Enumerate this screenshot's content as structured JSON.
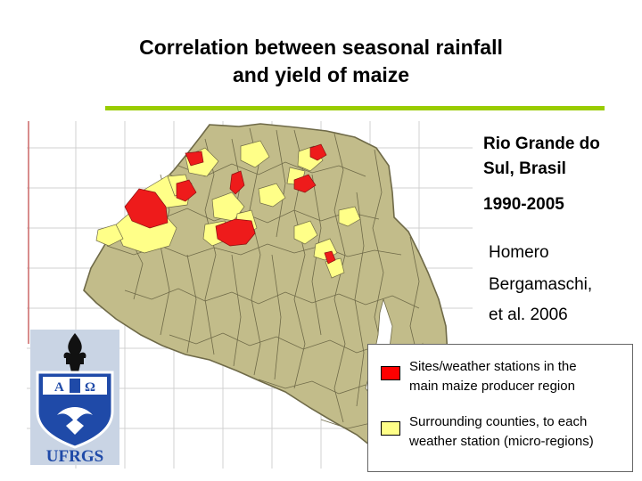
{
  "title": {
    "line1": "Correlation between seasonal rainfall",
    "line2": "and yield of maize"
  },
  "map": {
    "region": "Rio Grande do Sul, Brasil",
    "colors": {
      "base": "#c2bc8a",
      "producer": "#ee1b1b",
      "surrounding": "#ffff88",
      "border": "#6f6a48",
      "grid": "#d0d0d0"
    }
  },
  "side_text": {
    "region_line1": "Rio Grande do",
    "region_line2": "Sul, Brasil",
    "period": "1990-2005",
    "author_line1": "Homero",
    "author_line2": "Bergamaschi,",
    "author_line3": "et al. 2006"
  },
  "legend": {
    "items": [
      {
        "line1": "Sites/weather stations in the",
        "line2": "main maize producer region",
        "color": "#ff0000"
      },
      {
        "line1": "Surrounding counties, to each",
        "line2": "weather station (micro-regions)",
        "color": "#ffff88"
      }
    ]
  },
  "logo": {
    "text": "UFRGS",
    "colors": {
      "primary": "#1f4aa8",
      "flame": "#111111"
    }
  }
}
